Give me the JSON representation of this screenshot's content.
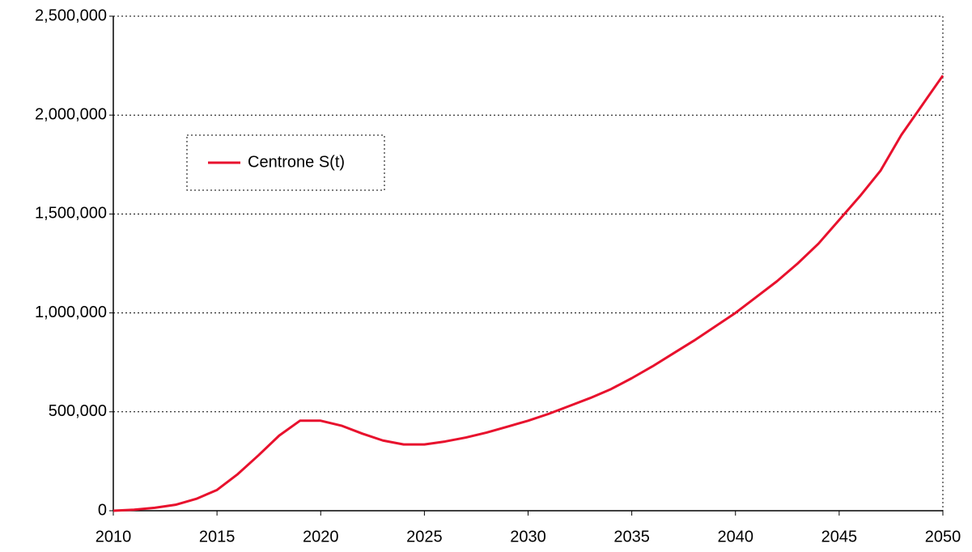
{
  "chart_data": {
    "type": "line",
    "x": [
      2010,
      2011,
      2012,
      2013,
      2014,
      2015,
      2016,
      2017,
      2018,
      2019,
      2020,
      2021,
      2022,
      2023,
      2024,
      2025,
      2026,
      2027,
      2028,
      2029,
      2030,
      2031,
      2032,
      2033,
      2034,
      2035,
      2036,
      2037,
      2038,
      2039,
      2040,
      2041,
      2042,
      2043,
      2044,
      2045,
      2046,
      2047,
      2048,
      2049,
      2050
    ],
    "series": [
      {
        "name": "Centrone S(t)",
        "color": "#e8112d",
        "values": [
          0,
          5000,
          15000,
          30000,
          60000,
          105000,
          185000,
          280000,
          380000,
          455000,
          455000,
          430000,
          390000,
          355000,
          335000,
          335000,
          350000,
          370000,
          395000,
          425000,
          455000,
          490000,
          530000,
          570000,
          615000,
          670000,
          730000,
          795000,
          860000,
          930000,
          1000000,
          1080000,
          1160000,
          1250000,
          1350000,
          1470000,
          1590000,
          1720000,
          1900000,
          2050000,
          2200000
        ]
      }
    ],
    "xlim": [
      2010,
      2050
    ],
    "xticks": [
      2010,
      2015,
      2020,
      2025,
      2030,
      2035,
      2040,
      2045,
      2050
    ],
    "ylim": [
      0,
      2500000
    ],
    "yticks": [
      0,
      {
        "value": 500000,
        "label": "500,000"
      },
      {
        "value": 1000000,
        "label": "1,000,000"
      },
      {
        "value": 1500000,
        "label": "1,500,000"
      },
      {
        "value": 2000000,
        "label": "2,000,000"
      },
      {
        "value": 2500000,
        "label": "2,500,000"
      }
    ],
    "grid": true,
    "legend": "upper-left"
  }
}
